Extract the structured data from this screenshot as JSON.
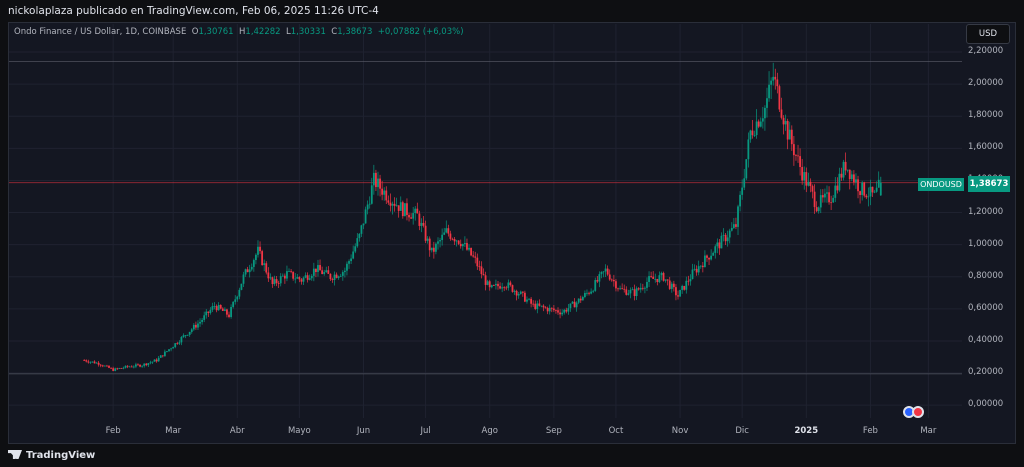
{
  "header": {
    "publisher_line": "nickolaplaza publicado en TradingView.com, Feb 06, 2025 11:26 UTC-4"
  },
  "symbol": {
    "name": "Ondo Finance / US Dollar, 1D, COINBASE",
    "open_label": "O",
    "open": "1,30761",
    "high_label": "H",
    "high": "1,42282",
    "low_label": "L",
    "low": "1,30331",
    "close_label": "C",
    "close": "1,38673",
    "change": "+0,07882 (+6,03%)"
  },
  "currency_button": "USD",
  "last_price": {
    "ticker": "ONDOUSD",
    "price": "1,38673"
  },
  "footer": {
    "logo_text": "TradingView"
  },
  "colors": {
    "up": "#089981",
    "down": "#f23645",
    "background": "#141722",
    "grid": "#1f2230"
  },
  "event_icons": [
    "us-flag-icon",
    "earnings-icon"
  ],
  "chart_data": {
    "type": "candlestick",
    "title": "",
    "ylim": [
      -0.08,
      2.25
    ],
    "y_ticks": [
      "2,20000",
      "2,00000",
      "1,80000",
      "1,60000",
      "1,40000",
      "1,20000",
      "1,00000",
      "0,80000",
      "0,60000",
      "0,40000",
      "0,20000",
      "0,00000"
    ],
    "y_tick_values": [
      2.2,
      2.0,
      1.8,
      1.6,
      1.4,
      1.2,
      1.0,
      0.8,
      0.6,
      0.4,
      0.2,
      0.0
    ],
    "x_ticks": [
      "Feb",
      "Mar",
      "Abr",
      "Mayo",
      "Jun",
      "Jul",
      "Ago",
      "Sep",
      "Oct",
      "Nov",
      "Dic",
      "2025",
      "Feb",
      "Mar"
    ],
    "x_ticks_bold": [
      "2025"
    ],
    "horizontal_lines": [
      2.14,
      1.386,
      0.195
    ],
    "series": [
      {
        "date": "2024-01-18",
        "close": 0.28
      },
      {
        "date": "2024-01-25",
        "close": 0.26
      },
      {
        "date": "2024-02-01",
        "close": 0.22
      },
      {
        "date": "2024-02-08",
        "close": 0.24
      },
      {
        "date": "2024-02-15",
        "close": 0.25
      },
      {
        "date": "2024-02-22",
        "close": 0.28
      },
      {
        "date": "2024-02-29",
        "close": 0.36
      },
      {
        "date": "2024-03-07",
        "close": 0.44
      },
      {
        "date": "2024-03-14",
        "close": 0.52
      },
      {
        "date": "2024-03-21",
        "close": 0.62
      },
      {
        "date": "2024-03-28",
        "close": 0.56
      },
      {
        "date": "2024-04-04",
        "close": 0.8
      },
      {
        "date": "2024-04-11",
        "close": 0.96
      },
      {
        "date": "2024-04-18",
        "close": 0.75
      },
      {
        "date": "2024-04-25",
        "close": 0.82
      },
      {
        "date": "2024-05-02",
        "close": 0.78
      },
      {
        "date": "2024-05-09",
        "close": 0.85
      },
      {
        "date": "2024-05-16",
        "close": 0.8
      },
      {
        "date": "2024-05-23",
        "close": 0.84
      },
      {
        "date": "2024-05-30",
        "close": 1.05
      },
      {
        "date": "2024-06-06",
        "close": 1.4
      },
      {
        "date": "2024-06-13",
        "close": 1.3
      },
      {
        "date": "2024-06-20",
        "close": 1.22
      },
      {
        "date": "2024-06-27",
        "close": 1.18
      },
      {
        "date": "2024-07-04",
        "close": 0.95
      },
      {
        "date": "2024-07-11",
        "close": 1.08
      },
      {
        "date": "2024-07-18",
        "close": 1.02
      },
      {
        "date": "2024-07-25",
        "close": 0.9
      },
      {
        "date": "2024-08-01",
        "close": 0.72
      },
      {
        "date": "2024-08-08",
        "close": 0.76
      },
      {
        "date": "2024-08-15",
        "close": 0.7
      },
      {
        "date": "2024-08-22",
        "close": 0.62
      },
      {
        "date": "2024-08-29",
        "close": 0.6
      },
      {
        "date": "2024-09-05",
        "close": 0.58
      },
      {
        "date": "2024-09-12",
        "close": 0.64
      },
      {
        "date": "2024-09-19",
        "close": 0.72
      },
      {
        "date": "2024-09-26",
        "close": 0.84
      },
      {
        "date": "2024-10-03",
        "close": 0.72
      },
      {
        "date": "2024-10-10",
        "close": 0.7
      },
      {
        "date": "2024-10-17",
        "close": 0.78
      },
      {
        "date": "2024-10-24",
        "close": 0.8
      },
      {
        "date": "2024-10-31",
        "close": 0.68
      },
      {
        "date": "2024-11-07",
        "close": 0.82
      },
      {
        "date": "2024-11-14",
        "close": 0.92
      },
      {
        "date": "2024-11-21",
        "close": 1.02
      },
      {
        "date": "2024-11-28",
        "close": 1.12
      },
      {
        "date": "2024-12-05",
        "close": 1.7
      },
      {
        "date": "2024-12-12",
        "close": 1.85
      },
      {
        "date": "2024-12-16",
        "close": 2.05
      },
      {
        "date": "2024-12-23",
        "close": 1.7
      },
      {
        "date": "2024-12-30",
        "close": 1.45
      },
      {
        "date": "2025-01-06",
        "close": 1.25
      },
      {
        "date": "2025-01-13",
        "close": 1.3
      },
      {
        "date": "2025-01-20",
        "close": 1.5
      },
      {
        "date": "2025-01-27",
        "close": 1.35
      },
      {
        "date": "2025-02-03",
        "close": 1.3
      },
      {
        "date": "2025-02-06",
        "close": 1.387
      }
    ]
  }
}
